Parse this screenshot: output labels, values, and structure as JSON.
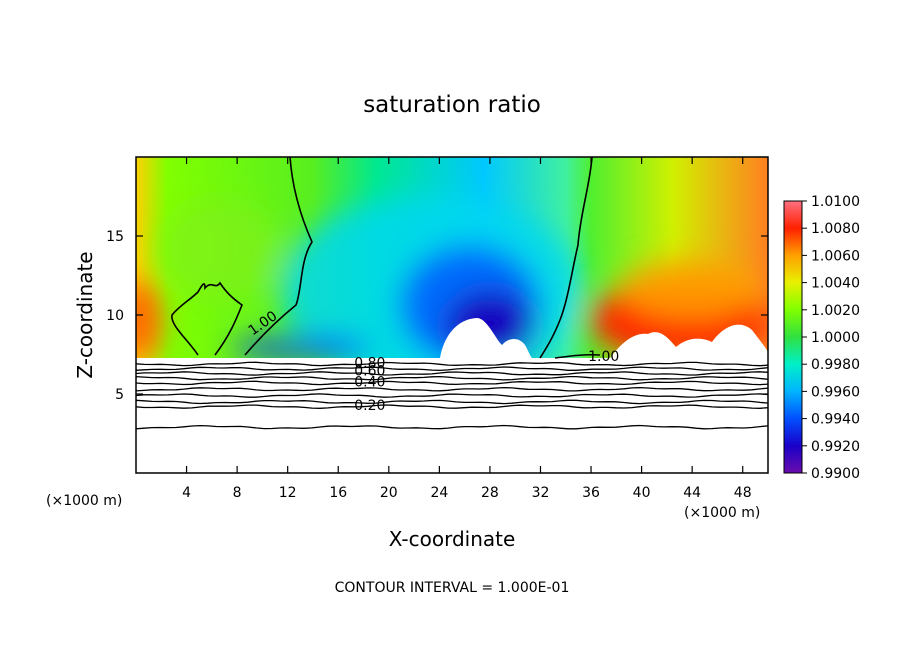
{
  "chart_data": {
    "type": "heatmap",
    "title": "saturation ratio",
    "xlabel": "X-coordinate",
    "ylabel": "Z-coordinate",
    "x_unit_left": "(×1000 m)",
    "x_unit_right": "(×1000 m)",
    "xlim": [
      0,
      50
    ],
    "ylim": [
      0,
      20
    ],
    "x_ticks": [
      4,
      8,
      12,
      16,
      20,
      24,
      28,
      32,
      36,
      40,
      44,
      48
    ],
    "x_tick_labels": [
      "4",
      "8",
      "12",
      "16",
      "20",
      "24",
      "28",
      "32",
      "36",
      "40",
      "44",
      "48"
    ],
    "y_ticks": [
      5,
      10,
      15
    ],
    "y_tick_labels": [
      "5",
      "10",
      "15"
    ],
    "colorbar": {
      "min": 0.99,
      "max": 1.01,
      "labels": [
        "1.0100",
        "1.0080",
        "1.0060",
        "1.0040",
        "1.0020",
        "1.0000",
        "0.9980",
        "0.9960",
        "0.9940",
        "0.9920",
        "0.9900"
      ],
      "colors": [
        "#6a0dad",
        "#1a00c8",
        "#0050ff",
        "#00b4ff",
        "#00f0c8",
        "#30e040",
        "#80ff00",
        "#e8f000",
        "#ffa000",
        "#ff2000",
        "#ff7080"
      ]
    },
    "contour_labels": [
      {
        "text": "1.00",
        "x": 10,
        "z": 9.5
      },
      {
        "text": "1.00",
        "x": 37,
        "z": 7.4
      },
      {
        "text": "0.80",
        "x": 18.5,
        "z": 7.0
      },
      {
        "text": "0.60",
        "x": 18.5,
        "z": 6.5
      },
      {
        "text": "0.40",
        "x": 18.5,
        "z": 5.8
      },
      {
        "text": "0.20",
        "x": 18.5,
        "z": 4.3
      }
    ],
    "low_contour_levels": [
      6.9,
      6.6,
      6.3,
      6.0,
      5.7,
      5.3,
      4.9,
      4.5,
      4.2,
      2.9
    ],
    "footer": "CONTOUR INTERVAL = 1.000E-01"
  }
}
